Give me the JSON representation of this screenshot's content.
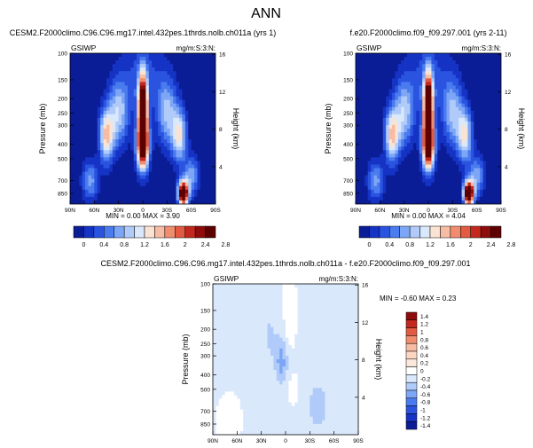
{
  "page": {
    "title": "ANN"
  },
  "panels": [
    {
      "title": "CESM2.F2000climo.C96.C96.mg17.intel.432pes.1thrds.nolb.ch011a (yrs 1)",
      "field": "GSIWP",
      "units": "mg/m:S:3:N:",
      "stats": "MIN =   0.00  MAX =    3.90",
      "peaks": [
        {
          "lat": 0,
          "p": 250,
          "sx": 6,
          "sy": 0.55,
          "v": 3.9
        },
        {
          "lat": -50,
          "p": 850,
          "sx": 6,
          "sy": 0.2,
          "v": 3.6
        }
      ]
    },
    {
      "title": "f.e20.F2000climo.f09_f09.297.001 (yrs 2-11)",
      "field": "GSIWP",
      "units": "mg/m:S:3:N:",
      "stats": "MIN =   0.00  MAX =    4.04",
      "peaks": [
        {
          "lat": 0,
          "p": 250,
          "sx": 6,
          "sy": 0.55,
          "v": 4.04
        },
        {
          "lat": -50,
          "p": 850,
          "sx": 6,
          "sy": 0.2,
          "v": 3.7
        }
      ]
    },
    {
      "title": "CESM2.F2000climo.C96.C96.mg17.intel.432pes.1thrds.nolb.ch011a - f.e20.F2000climo.f09_f09.297.001",
      "field": "GSIWP",
      "units": "mg/m:S:3:N:",
      "stats": "MIN =  -0.60  MAX =    0.23"
    }
  ],
  "colorbar_top": {
    "labels": [
      "0",
      "0.4",
      "0.8",
      "1.2",
      "1.6",
      "2",
      "2.4",
      "2.8"
    ],
    "colors": [
      "#0b1d96",
      "#1533c4",
      "#2a54e0",
      "#4a7bef",
      "#7ea6f6",
      "#b0cbfa",
      "#dae8fc",
      "#fbe3d3",
      "#f7bca4",
      "#f08d6f",
      "#e25a41",
      "#c3281f",
      "#8e0c0c",
      "#5c0000"
    ]
  },
  "colorbar_diff": {
    "labels": [
      "1.4",
      "1.2",
      "1",
      "0.8",
      "0.6",
      "0.4",
      "0.2",
      "0",
      "-0.2",
      "-0.4",
      "-0.6",
      "-0.8",
      "-1",
      "-1.2",
      "-1.4"
    ],
    "colors": [
      "#8e0c0c",
      "#c3281f",
      "#e25a41",
      "#f08d6f",
      "#f7bca4",
      "#fbd7c3",
      "#fbe8dc",
      "#ffffff",
      "#dae8fc",
      "#b0cbfa",
      "#7ea6f6",
      "#4a7bef",
      "#2a54e0",
      "#1533c4",
      "#0b1d96"
    ]
  },
  "chart_data": [
    {
      "type": "heatmap",
      "title": "CESM2.F2000climo.C96.C96.mg17.intel.432pes.1thrds.nolb.ch011a (yrs 1)",
      "xlabel": "",
      "ylabel": "Pressure (mb)",
      "y2label": "Height (km)",
      "x_ticks": [
        "90N",
        "60N",
        "30N",
        "0",
        "30S",
        "60S",
        "90S"
      ],
      "y_ticks": [
        100,
        150,
        200,
        250,
        300,
        400,
        500,
        700,
        850
      ],
      "y2_ticks": [
        4,
        8,
        12,
        16
      ],
      "y_scale": "log",
      "ylim": [
        100,
        1000
      ],
      "stats": {
        "min": 0.0,
        "max": 3.9
      }
    },
    {
      "type": "heatmap",
      "title": "f.e20.F2000climo.f09_f09.297.001 (yrs 2-11)",
      "xlabel": "",
      "ylabel": "Pressure (mb)",
      "y2label": "Height (km)",
      "x_ticks": [
        "90N",
        "60N",
        "30N",
        "0",
        "30S",
        "60S",
        "90S"
      ],
      "y_ticks": [
        100,
        150,
        200,
        250,
        300,
        400,
        500,
        700,
        850
      ],
      "y2_ticks": [
        4,
        8,
        12,
        16
      ],
      "y_scale": "log",
      "ylim": [
        100,
        1000
      ],
      "stats": {
        "min": 0.0,
        "max": 4.04
      }
    },
    {
      "type": "heatmap",
      "title": "CESM2.F2000climo.C96.C96.mg17.intel.432pes.1thrds.nolb.ch011a - f.e20.F2000climo.f09_f09.297.001",
      "xlabel": "",
      "ylabel": "Pressure (mb)",
      "y2label": "Height (km)",
      "x_ticks": [
        "90N",
        "60N",
        "30N",
        "0",
        "30S",
        "60S",
        "90S"
      ],
      "y_ticks": [
        100,
        150,
        200,
        250,
        300,
        400,
        500,
        700,
        850
      ],
      "y2_ticks": [
        4,
        8,
        12,
        16
      ],
      "y_scale": "log",
      "ylim": [
        100,
        1000
      ],
      "stats": {
        "min": -0.6,
        "max": 0.23
      }
    }
  ]
}
